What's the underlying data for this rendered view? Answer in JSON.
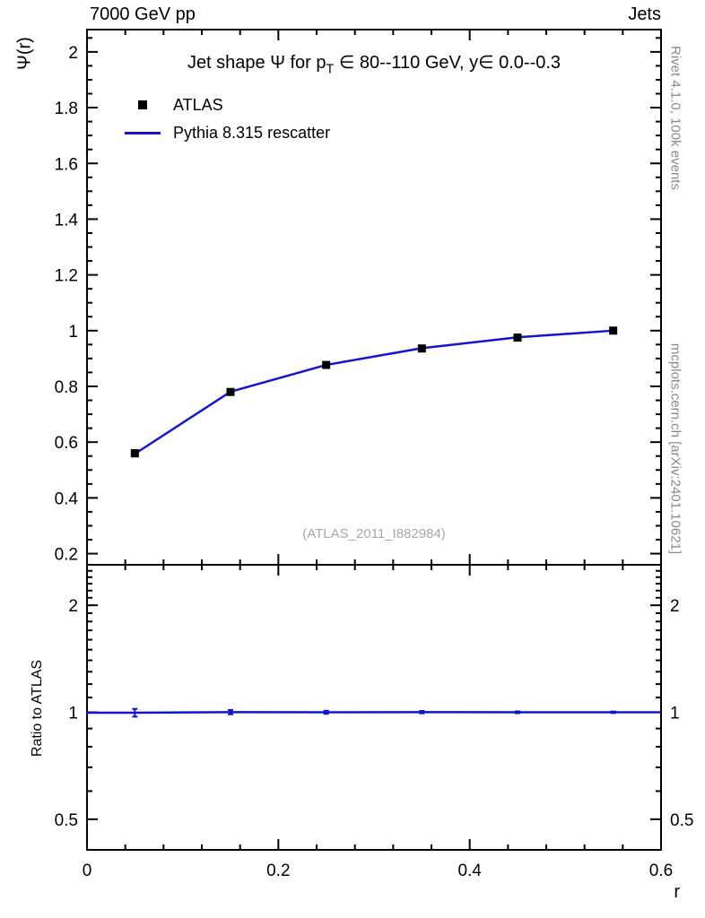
{
  "header": {
    "left_label": "7000 GeV pp",
    "right_label": "Jets"
  },
  "title": {
    "pre": "Jet shape Ψ for p",
    "sub": "T",
    "post": " ∈ 80--110 GeV, y∈ 0.0--0.3"
  },
  "legend": [
    {
      "label": "ATLAS",
      "marker": "square",
      "color": "#000000"
    },
    {
      "label": "Pythia 8.315 rescatter",
      "marker": "line",
      "color": "#1414cc"
    }
  ],
  "watermarks": {
    "analysis": "(ATLAS_2011_I882984)",
    "rivet": "Rivet 4.1.0,  100k events",
    "mcplots": "mcplots.cern.ch [arXiv:2401.10621]"
  },
  "axes": {
    "main_ylabel": "Ψ(r)",
    "ratio_ylabel": "Ratio to ATLAS",
    "xlabel": "r"
  },
  "chart_data": [
    {
      "type": "line",
      "panel": "main",
      "title": "Jet shape Ψ for p_T ∈ 80--110 GeV, y∈ 0.0--0.3",
      "xlabel": "r",
      "ylabel": "Ψ(r)",
      "xlim": [
        0,
        0.6
      ],
      "ylim": [
        0.16,
        2.08
      ],
      "xticks": [
        0,
        0.2,
        0.4,
        0.6
      ],
      "yticks": [
        0.2,
        0.4,
        0.6,
        0.8,
        1,
        1.2,
        1.4,
        1.6,
        1.8,
        2
      ],
      "grid": false,
      "legend_position": "top-left",
      "x": [
        0.05,
        0.15,
        0.25,
        0.35,
        0.45,
        0.55
      ],
      "series": [
        {
          "name": "ATLAS",
          "type": "scatter",
          "marker": "square",
          "color": "#000000",
          "values": [
            0.56,
            0.78,
            0.877,
            0.936,
            0.975,
            1.0
          ],
          "yerr": [
            0.012,
            0.008,
            0.006,
            0.005,
            0.004,
            0.003
          ]
        },
        {
          "name": "Pythia 8.315 rescatter",
          "type": "line",
          "color": "#1414cc",
          "values": [
            0.558,
            0.781,
            0.877,
            0.937,
            0.976,
            1.0
          ]
        }
      ]
    },
    {
      "type": "line",
      "panel": "ratio",
      "ylabel": "Ratio to ATLAS",
      "xlabel": "r",
      "yscale": "log",
      "xlim": [
        0,
        0.6
      ],
      "ylim": [
        0.41,
        2.6
      ],
      "xticks": [
        0,
        0.2,
        0.4,
        0.6
      ],
      "yticks": [
        0.5,
        1,
        2
      ],
      "reference_line": 1,
      "x": [
        0.05,
        0.15,
        0.25,
        0.35,
        0.45,
        0.55
      ],
      "series": [
        {
          "name": "Pythia 8.315 rescatter / ATLAS",
          "color": "#1414cc",
          "values": [
            0.997,
            1.001,
            1.0,
            1.001,
            1.0,
            1.0
          ],
          "yerr": [
            0.025,
            0.014,
            0.01,
            0.008,
            0.006,
            0.005
          ]
        }
      ]
    }
  ]
}
